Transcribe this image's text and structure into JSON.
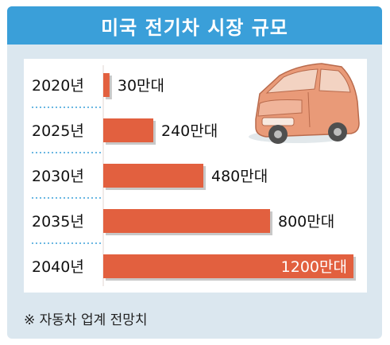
{
  "title": "미국 전기차 시장 규모",
  "footnote": "※ 자동차 업계 전망치",
  "colors": {
    "header": "#3a9fd9",
    "bar": "#e2603f",
    "frame": "#dbe7ef",
    "car": "#e99a78",
    "divider": "#3a9fd9"
  },
  "chart_data": {
    "type": "bar",
    "orientation": "horizontal",
    "title": "미국 전기차 시장 규모",
    "categories": [
      "2020년",
      "2025년",
      "2030년",
      "2035년",
      "2040년"
    ],
    "values": [
      30,
      240,
      480,
      800,
      1200
    ],
    "unit": "만대",
    "data_labels": [
      "30만대",
      "240만대",
      "480만대",
      "800만대",
      "1200만대"
    ],
    "grid": false,
    "legend": "none"
  },
  "illustration": "car-illustration"
}
